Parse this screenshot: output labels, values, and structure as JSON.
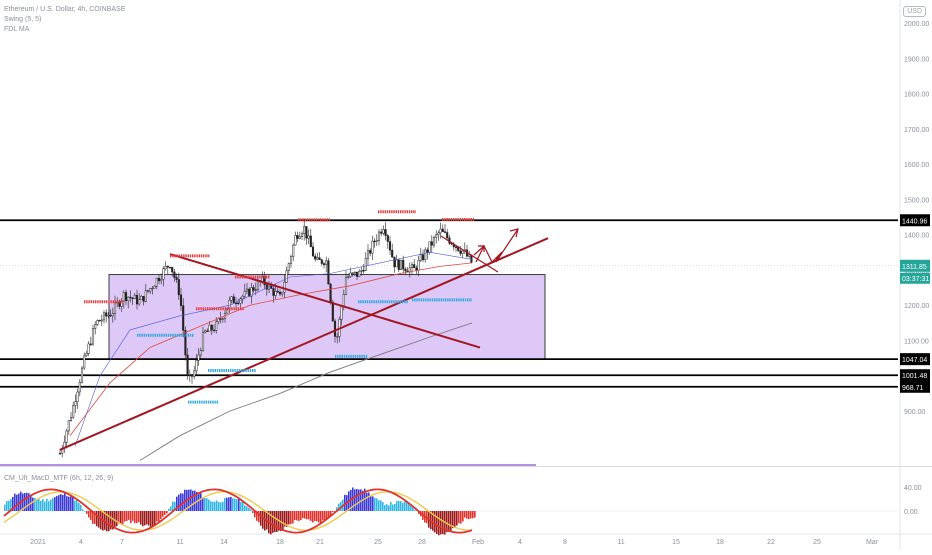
{
  "legend": {
    "symbol": "Ethereum / U.S. Dollar, 4h, COINBASE",
    "indicator_1": "Swing (5, 5)",
    "indicator_2": "FDL MA",
    "oscillator": "CM_Ult_MacD_MTF (6h, 12, 26, 9)"
  },
  "currency_badge": "USD",
  "chart_data": [
    {
      "type": "candlestick",
      "title": "Ethereum / U.S. Dollar, 4h, COINBASE",
      "x_tick_labels": [
        "2021",
        "4",
        "7",
        "11",
        "14",
        "18",
        "21",
        "25",
        "28",
        "Feb",
        "4",
        "8",
        "11",
        "15",
        "18",
        "22",
        "25",
        "Mar"
      ],
      "y_tick_labels": [
        900,
        1000,
        1100,
        1200,
        1300,
        1400,
        1500,
        1600,
        1700,
        1800,
        1900,
        2000
      ],
      "ylim": [
        760,
        2100
      ],
      "price_labels": {
        "resistance": "1440.96",
        "last_price": "1311.85",
        "countdown": "03:37:31",
        "support_1": "1047.04",
        "support_2": "1001.48",
        "support_3": "968.71"
      },
      "horizontal_levels": [
        1440.96,
        1047.04,
        1001.48,
        968.71
      ],
      "consolidation_box": {
        "price_top": 1287,
        "price_bottom": 1047,
        "color": "#c39bf0"
      },
      "trendlines": {
        "rising": {
          "from_price": 790,
          "to_price": 1390,
          "color": "#a31621"
        },
        "falling": {
          "from_price": 1345,
          "to_price": 1080,
          "color": "#a31621"
        }
      },
      "moving_averages": [
        {
          "name": "fast MA",
          "color": "#e0473c"
        },
        {
          "name": "slow MA",
          "color": "#7a7a7a"
        },
        {
          "name": "FDL MA",
          "color": "#4a5bd9"
        }
      ],
      "swing_highs": [
        1210,
        1340,
        1190,
        1280,
        1442,
        1465,
        1443
      ],
      "swing_lows": [
        1115,
        925,
        1015,
        1210,
        1055,
        1215
      ],
      "projection_arrows": "dark red zig-zag arrows toward ~1440"
    },
    {
      "type": "histogram",
      "title": "CM_Ult_MacD_MTF (6h, 12, 26, 9)",
      "y_tick_labels": [
        "40.00",
        "0.00"
      ],
      "ylim": [
        -70,
        70
      ],
      "colors": {
        "positive": "#33b7e6",
        "positive_strong": "#3a3ad9",
        "negative": "#e0342d",
        "negative_dark": "#9e1b1b"
      }
    }
  ]
}
